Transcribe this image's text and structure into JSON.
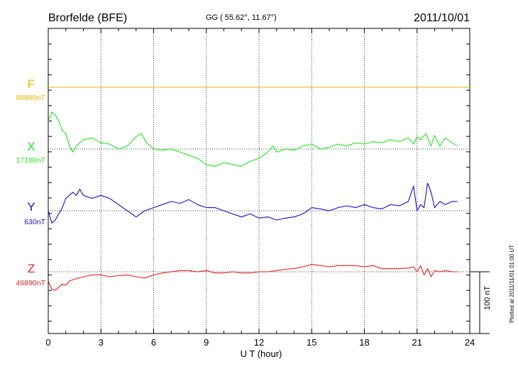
{
  "header": {
    "station": "Brorfelde (BFE)",
    "coords": "GG ( 55.62°,  11.67°)",
    "date": "2011/10/01"
  },
  "footer": {
    "plotted_note": "Plotted at 2011/11/01 01:00 UT",
    "scale_label": "100 nT"
  },
  "colors": {
    "F": "#f0b400",
    "X": "#22e622",
    "Y": "#1010cc",
    "Z": "#e62020",
    "axis": "#000000"
  },
  "chart_data": {
    "type": "line",
    "title": "Brorfelde (BFE)",
    "xlabel": "U T (hour)",
    "ylabel": "",
    "xlim": [
      0,
      24
    ],
    "xticks": [
      "0",
      "3",
      "6",
      "9",
      "12",
      "15",
      "18",
      "21",
      "24"
    ],
    "grid": true,
    "scale_bar_nT": 100,
    "series": [
      {
        "name": "F",
        "baseline_label": "88880nT",
        "x": [
          0,
          24
        ],
        "values_nT": [
          0,
          0
        ]
      },
      {
        "name": "X",
        "baseline_label": "17180nT",
        "x": [
          0,
          0.2,
          0.4,
          0.6,
          0.8,
          1.0,
          1.2,
          1.4,
          1.6,
          1.8,
          2.0,
          2.5,
          3.0,
          3.5,
          4.0,
          4.5,
          5.0,
          5.3,
          5.6,
          6.0,
          6.5,
          7.0,
          7.5,
          8.0,
          8.5,
          9.0,
          9.5,
          10.0,
          10.5,
          11.0,
          11.5,
          12.0,
          12.5,
          12.8,
          13.0,
          13.5,
          14.0,
          14.5,
          15.0,
          15.5,
          16.0,
          16.5,
          17.0,
          17.5,
          18.0,
          18.5,
          19.0,
          19.5,
          20.0,
          20.5,
          20.8,
          21.0,
          21.2,
          21.5,
          21.8,
          22.0,
          22.3,
          22.6,
          23.0,
          23.3
        ],
        "values_nT": [
          45,
          60,
          55,
          45,
          30,
          25,
          5,
          -5,
          5,
          10,
          15,
          18,
          10,
          8,
          0,
          5,
          20,
          25,
          10,
          0,
          -2,
          0,
          -5,
          -10,
          -15,
          -25,
          -28,
          -22,
          -25,
          -28,
          -20,
          -15,
          -5,
          5,
          -5,
          0,
          -2,
          5,
          8,
          0,
          3,
          8,
          5,
          10,
          8,
          12,
          10,
          15,
          12,
          18,
          8,
          20,
          15,
          25,
          5,
          22,
          5,
          18,
          10,
          5
        ]
      },
      {
        "name": "Y",
        "baseline_label": "630nT",
        "x": [
          0,
          0.2,
          0.4,
          0.6,
          0.8,
          1.0,
          1.2,
          1.4,
          1.6,
          1.8,
          2.0,
          2.5,
          3.0,
          3.5,
          4.0,
          4.5,
          5.0,
          5.5,
          6.0,
          6.5,
          7.0,
          7.5,
          8.0,
          8.5,
          9.0,
          9.5,
          10.0,
          10.5,
          11.0,
          11.5,
          12.0,
          12.5,
          13.0,
          13.5,
          14.0,
          14.5,
          15.0,
          15.5,
          16.0,
          16.5,
          17.0,
          17.5,
          18.0,
          18.5,
          19.0,
          19.5,
          20.0,
          20.5,
          20.8,
          21.0,
          21.2,
          21.4,
          21.6,
          21.8,
          22.0,
          22.3,
          22.6,
          23.0,
          23.3
        ],
        "values_nT": [
          0,
          -20,
          -15,
          -5,
          5,
          20,
          25,
          30,
          25,
          35,
          25,
          20,
          25,
          20,
          10,
          0,
          -10,
          0,
          5,
          10,
          15,
          12,
          18,
          10,
          5,
          5,
          0,
          -5,
          -10,
          -5,
          -12,
          -10,
          -15,
          -12,
          -10,
          -5,
          5,
          3,
          0,
          5,
          8,
          5,
          10,
          5,
          3,
          10,
          8,
          15,
          40,
          0,
          10,
          5,
          45,
          30,
          5,
          15,
          10,
          15,
          15
        ]
      },
      {
        "name": "Z",
        "baseline_label": "46890nT",
        "x": [
          0,
          0.2,
          0.4,
          0.6,
          0.8,
          1.0,
          1.2,
          1.5,
          2.0,
          2.5,
          3.0,
          3.5,
          4.0,
          4.5,
          5.0,
          5.5,
          6.0,
          6.5,
          7.0,
          7.5,
          8.0,
          8.5,
          9.0,
          9.5,
          10.0,
          10.5,
          11.0,
          11.5,
          12.0,
          12.5,
          13.0,
          13.5,
          14.0,
          14.5,
          15.0,
          15.5,
          16.0,
          16.5,
          17.0,
          17.5,
          18.0,
          18.5,
          19.0,
          19.5,
          20.0,
          20.5,
          20.8,
          21.0,
          21.2,
          21.4,
          21.6,
          21.8,
          22.0,
          22.3,
          22.6,
          23.0,
          23.3
        ],
        "values_nT": [
          -15,
          -28,
          -30,
          -25,
          -20,
          -22,
          -15,
          -12,
          -8,
          -5,
          -5,
          -8,
          -6,
          -5,
          -8,
          -10,
          -5,
          -2,
          0,
          2,
          2,
          0,
          2,
          -2,
          -2,
          0,
          -2,
          -2,
          0,
          0,
          2,
          4,
          5,
          8,
          12,
          10,
          8,
          10,
          10,
          10,
          8,
          10,
          5,
          5,
          5,
          6,
          8,
          0,
          10,
          -5,
          5,
          -8,
          2,
          0,
          2,
          0,
          0
        ]
      }
    ]
  }
}
